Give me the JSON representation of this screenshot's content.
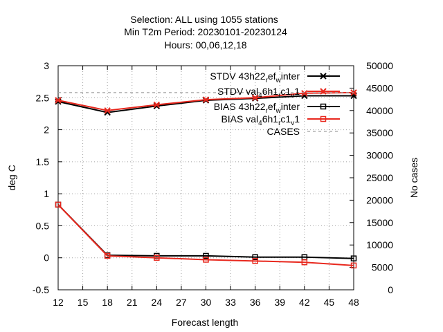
{
  "title": {
    "line1": "Selection: ALL using  1055 stations",
    "line2": "Min T2m   Period: 20230101-20230124",
    "line3": "Hours:  00,06,12,18"
  },
  "chart_data": {
    "type": "line",
    "xlabel": "Forecast length",
    "ylabel": "deg C",
    "y2label": "No cases",
    "x_ticks": [
      12,
      15,
      18,
      21,
      24,
      27,
      30,
      33,
      36,
      39,
      42,
      45,
      48
    ],
    "xlim": [
      12,
      48
    ],
    "ylim": [
      -0.5,
      3
    ],
    "y_ticks": [
      -0.5,
      0,
      0.5,
      1,
      1.5,
      2,
      2.5,
      3
    ],
    "y_tick_labels": [
      "-0.5",
      "0",
      "0.5",
      "1",
      "1.5",
      "2",
      "2.5",
      "3"
    ],
    "y2lim": [
      0,
      50000
    ],
    "y2_ticks": [
      0,
      5000,
      10000,
      15000,
      20000,
      25000,
      30000,
      35000,
      40000,
      45000,
      50000
    ],
    "grid": true,
    "legend_position": "top-right",
    "x": [
      12,
      18,
      24,
      30,
      36,
      42,
      48
    ],
    "series": [
      {
        "name": "STDV 43h22_ref_winter",
        "legend_main": "STDV 43h22",
        "legend_sub1": "r",
        "legend_mid": "ef",
        "legend_sub2": "w",
        "legend_tail": "inter",
        "color": "#000000",
        "marker": "star",
        "dash": "",
        "values": [
          2.44,
          2.27,
          2.37,
          2.46,
          2.49,
          2.53,
          2.53
        ]
      },
      {
        "name": "STDV val_46h1_rc1_v1",
        "legend_main": "STDV val",
        "legend_sub1": "4",
        "legend_mid": "6h1",
        "legend_sub2": "r",
        "legend_tail": "c1",
        "legend_sub3": "v",
        "legend_end": "1",
        "color": "#e8281e",
        "marker": "star",
        "dash": "",
        "values": [
          2.46,
          2.3,
          2.39,
          2.47,
          2.5,
          2.57,
          2.58
        ]
      },
      {
        "name": "BIAS 43h22_ref_winter",
        "legend_main": "BIAS 43h22",
        "legend_sub1": "r",
        "legend_mid": "ef",
        "legend_sub2": "w",
        "legend_tail": "inter",
        "color": "#000000",
        "marker": "square",
        "dash": "",
        "values": [
          0.83,
          0.04,
          0.03,
          0.03,
          0.01,
          0.01,
          -0.01
        ]
      },
      {
        "name": "BIAS val_46h1_rc1_v1",
        "legend_main": "BIAS val",
        "legend_sub1": "4",
        "legend_mid": "6h1",
        "legend_sub2": "r",
        "legend_tail": "c1",
        "legend_sub3": "v",
        "legend_end": "1",
        "color": "#e8281e",
        "marker": "square",
        "dash": "",
        "values": [
          0.83,
          0.03,
          0.0,
          -0.03,
          -0.05,
          -0.07,
          -0.12
        ]
      },
      {
        "name": "CASES",
        "color": "#a0a0a0",
        "marker": "none",
        "dash": "4,4",
        "axis": "y2",
        "values": [
          44000,
          44000,
          44000,
          44000,
          44000,
          44000,
          44000
        ]
      }
    ]
  }
}
